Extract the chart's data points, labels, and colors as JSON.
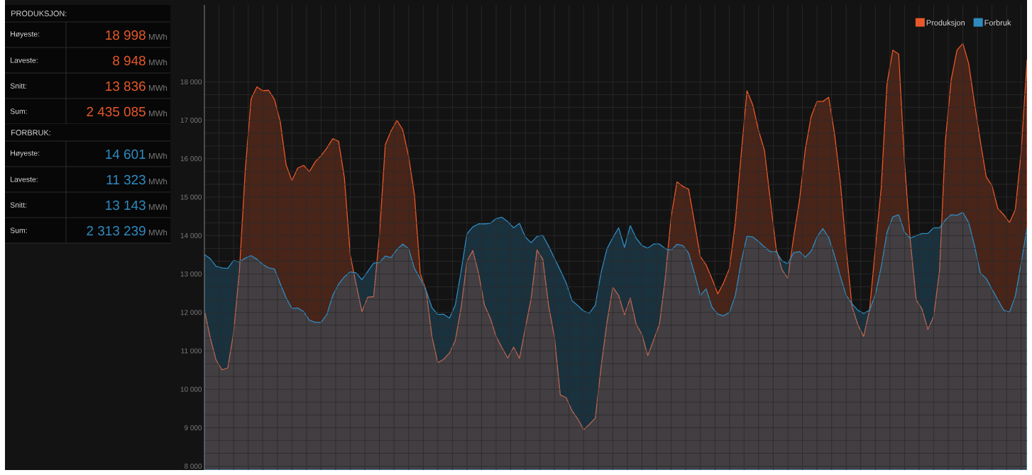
{
  "chart_data": {
    "type": "area",
    "categories": [
      null,
      null,
      null,
      null,
      null,
      null,
      null,
      null,
      null,
      null,
      null,
      null,
      null,
      null,
      null,
      null,
      null,
      null,
      null,
      null,
      null,
      null,
      null,
      null,
      null,
      null,
      null,
      null,
      null,
      null,
      null,
      null,
      null,
      null,
      null,
      null,
      null,
      null,
      null,
      null,
      null,
      null,
      null,
      null,
      null,
      null,
      null,
      null,
      null,
      null,
      null,
      null,
      null,
      null,
      null,
      null,
      null,
      null,
      null,
      null,
      null,
      null,
      null,
      null,
      null,
      null,
      null,
      null,
      null,
      null,
      null,
      null,
      null,
      null,
      null,
      null,
      null,
      null,
      null,
      null,
      null,
      null,
      null,
      null,
      null,
      null,
      null,
      null,
      null,
      null,
      null,
      null,
      null,
      null,
      null,
      null,
      null,
      null,
      null,
      null,
      null,
      null,
      null,
      null,
      null,
      null,
      null,
      null,
      null,
      null,
      null,
      null,
      null,
      null,
      null,
      null,
      null,
      null,
      null,
      null,
      null,
      null,
      null,
      null,
      null,
      null,
      null,
      null,
      null,
      null,
      null,
      null,
      null,
      null,
      null,
      null,
      null,
      null,
      null,
      null,
      null,
      null
    ],
    "series": [
      {
        "name": "Produksjon",
        "color": "#e8582a",
        "values": [
          12056,
          11340,
          10760,
          10508,
          10556,
          11476,
          13078,
          15703,
          17557,
          17871,
          17768,
          17782,
          17543,
          16964,
          15839,
          15430,
          15757,
          15826,
          15662,
          15921,
          16078,
          16282,
          16521,
          16453,
          15498,
          13487,
          12737,
          12022,
          12397,
          12410,
          13999,
          16364,
          16725,
          16998,
          16753,
          16064,
          15055,
          13010,
          12567,
          11374,
          10692,
          10781,
          10945,
          11272,
          12124,
          13331,
          13610,
          13010,
          12192,
          11851,
          11374,
          11081,
          10815,
          11101,
          10808,
          11592,
          12363,
          13624,
          13385,
          12172,
          11354,
          9854,
          9786,
          9445,
          9227,
          8948,
          9090,
          9254,
          10590,
          11749,
          12656,
          12444,
          11940,
          12376,
          11695,
          11422,
          10877,
          11285,
          11695,
          12908,
          14489,
          15396,
          15280,
          15205,
          14339,
          13453,
          13235,
          12874,
          12485,
          12772,
          13147,
          14339,
          16112,
          17768,
          17393,
          16725,
          16214,
          14919,
          13658,
          13112,
          12887,
          13964,
          14919,
          16248,
          17100,
          17489,
          17489,
          17598,
          16657,
          15396,
          13658,
          12158,
          11681,
          11374,
          12056,
          13658,
          15226,
          17952,
          18825,
          18723,
          15907,
          13862,
          12329,
          12090,
          11558,
          11899,
          13078,
          16453,
          18055,
          18825,
          18998,
          18477,
          17441,
          16453,
          15533,
          15294,
          14701,
          14544,
          14339,
          14680,
          16180,
          18566
        ]
      },
      {
        "name": "Forbruk",
        "color": "#2e8bc0",
        "values": [
          13508,
          13399,
          13201,
          13160,
          13146,
          13351,
          13317,
          13412,
          13480,
          13385,
          13249,
          13160,
          13133,
          12751,
          12383,
          12103,
          12117,
          12022,
          11797,
          11742,
          11742,
          11953,
          12444,
          12737,
          12928,
          13058,
          13031,
          12853,
          13065,
          13283,
          13296,
          13467,
          13426,
          13637,
          13780,
          13658,
          13146,
          12874,
          12567,
          12124,
          11947,
          11954,
          11851,
          12192,
          13078,
          14046,
          14223,
          14305,
          14305,
          14319,
          14442,
          14476,
          14360,
          14203,
          14319,
          13964,
          13814,
          13978,
          14005,
          13726,
          13406,
          13099,
          12771,
          12308,
          12178,
          12035,
          11981,
          12192,
          13044,
          13658,
          13944,
          14203,
          13692,
          14258,
          13931,
          13740,
          13672,
          13781,
          13781,
          13658,
          13624,
          13774,
          13740,
          13542,
          13010,
          12444,
          12615,
          12138,
          11954,
          11913,
          12001,
          12444,
          13317,
          13985,
          13965,
          13842,
          13706,
          13583,
          13583,
          13344,
          13262,
          13555,
          13583,
          13440,
          13596,
          13965,
          14183,
          13951,
          13487,
          12942,
          12444,
          12226,
          12056,
          11974,
          12056,
          12465,
          13180,
          14087,
          14489,
          14543,
          14087,
          13931,
          13999,
          14053,
          14053,
          14203,
          14203,
          14408,
          14543,
          14530,
          14601,
          14339,
          13740,
          13024,
          12887,
          12601,
          12328,
          12056,
          12008,
          12431,
          13283,
          14203
        ]
      }
    ],
    "ylim": [
      7900,
      20000
    ],
    "yticks": [
      {
        "value": 8000,
        "label": "8 000"
      },
      {
        "value": 9000,
        "label": "9 000"
      },
      {
        "value": 10000,
        "label": "10 000"
      },
      {
        "value": 11000,
        "label": "11 000"
      },
      {
        "value": 12000,
        "label": "12 000"
      },
      {
        "value": 13000,
        "label": "13 000"
      },
      {
        "value": 14000,
        "label": "14 000"
      },
      {
        "value": 15000,
        "label": "15 000"
      },
      {
        "value": 16000,
        "label": "16 000"
      },
      {
        "value": 17000,
        "label": "17 000"
      },
      {
        "value": 18000,
        "label": "18 000"
      }
    ],
    "tick_labels": "y",
    "grid": true,
    "legend": "top right",
    "annotations": [
      "PRODUKSJON:",
      "Høyeste:",
      "18 998",
      "MWh",
      "Laveste:",
      "8 948",
      "MWh",
      "Snitt:",
      "13 836",
      "MWh",
      "Sum:",
      "2 435 085",
      "MWh",
      "FORBRUK:",
      "Høyeste:",
      "14 601",
      "MWh",
      "Laveste:",
      "11 323",
      "MWh",
      "Snitt:",
      "13 143",
      "MWh",
      "Sum:",
      "2 313 239",
      "MWh"
    ]
  }
}
